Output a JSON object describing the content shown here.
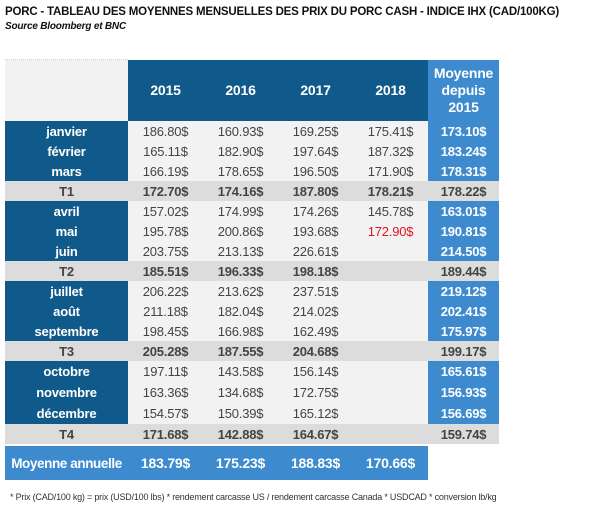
{
  "title": "PORC - TABLEAU DES MOYENNES MENSUELLES DES PRIX DU PORC CASH - INDICE IHX (CAD/100KG)",
  "source": "Source Bloomberg et BNC",
  "headers": [
    "2015",
    "2016",
    "2017",
    "2018",
    "Moyenne depuis 2015"
  ],
  "groups": [
    {
      "months": [
        {
          "label": "janvier",
          "values": [
            "186.80$",
            "160.93$",
            "169.25$",
            "175.41$"
          ],
          "avg": "173.10$"
        },
        {
          "label": "février",
          "values": [
            "165.11$",
            "182.90$",
            "197.64$",
            "187.32$"
          ],
          "avg": "183.24$"
        },
        {
          "label": "mars",
          "values": [
            "166.19$",
            "178.65$",
            "196.50$",
            "171.90$"
          ],
          "avg": "178.31$"
        }
      ],
      "quarter": {
        "label": "T1",
        "values": [
          "172.70$",
          "174.16$",
          "187.80$",
          "178.21$"
        ],
        "avg": "178.22$"
      }
    },
    {
      "months": [
        {
          "label": "avril",
          "values": [
            "157.02$",
            "174.99$",
            "174.26$",
            "145.78$"
          ],
          "avg": "163.01$"
        },
        {
          "label": "mai",
          "values": [
            "195.78$",
            "200.86$",
            "193.68$",
            "172.90$"
          ],
          "avg": "190.81$"
        },
        {
          "label": "juin",
          "values": [
            "203.75$",
            "213.13$",
            "226.61$",
            ""
          ],
          "avg": "214.50$"
        }
      ],
      "quarter": {
        "label": "T2",
        "values": [
          "185.51$",
          "196.33$",
          "198.18$",
          ""
        ],
        "avg": "189.44$"
      }
    },
    {
      "months": [
        {
          "label": "juillet",
          "values": [
            "206.22$",
            "213.62$",
            "237.51$",
            ""
          ],
          "avg": "219.12$"
        },
        {
          "label": "août",
          "values": [
            "211.18$",
            "182.04$",
            "214.02$",
            ""
          ],
          "avg": "202.41$"
        },
        {
          "label": "septembre",
          "values": [
            "198.45$",
            "166.98$",
            "162.49$",
            ""
          ],
          "avg": "175.97$"
        }
      ],
      "quarter": {
        "label": "T3",
        "values": [
          "205.28$",
          "187.55$",
          "204.68$",
          ""
        ],
        "avg": "199.17$"
      }
    },
    {
      "months": [
        {
          "label": "octobre",
          "values": [
            "197.11$",
            "143.58$",
            "156.14$",
            ""
          ],
          "avg": "165.61$"
        },
        {
          "label": "novembre",
          "values": [
            "163.36$",
            "134.68$",
            "172.75$",
            ""
          ],
          "avg": "156.93$"
        },
        {
          "label": "décembre",
          "values": [
            "154.57$",
            "150.39$",
            "165.12$",
            ""
          ],
          "avg": "156.69$"
        }
      ],
      "quarter": {
        "label": "T4",
        "values": [
          "171.68$",
          "142.88$",
          "164.67$",
          ""
        ],
        "avg": "159.74$"
      }
    }
  ],
  "annual": {
    "label": "Moyenne annuelle",
    "values": [
      "183.79$",
      "175.23$",
      "188.83$",
      "170.66$"
    ]
  },
  "highlight_color": "#e0141e",
  "footnote": "* Prix (CAD/100 kg) = prix (USD/100 lbs) * rendement carcasse US / rendement carcasse Canada * USDCAD * conversion lb/kg"
}
